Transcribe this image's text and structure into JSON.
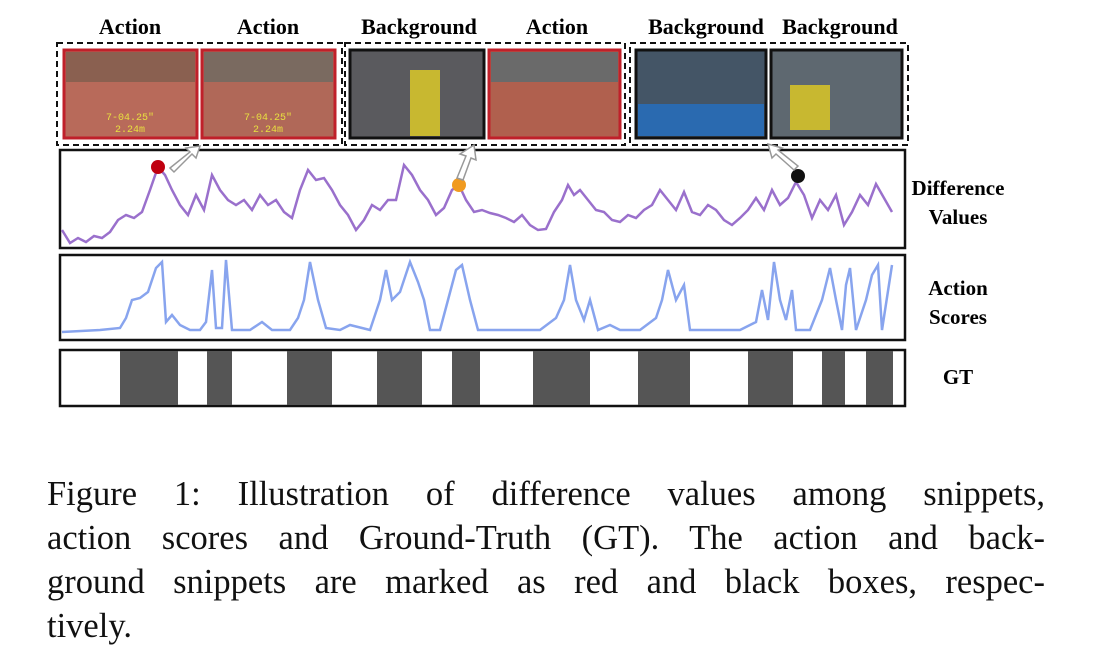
{
  "figure": {
    "frame_labels": [
      "Action",
      "Action",
      "Background",
      "Action",
      "Background",
      "Background"
    ],
    "frame_overlay": {
      "time": "7-04.25\"",
      "height": "2.24m"
    },
    "row_labels": {
      "difference": [
        "Difference",
        "Values"
      ],
      "scores": [
        "Action",
        "Scores"
      ],
      "gt": "GT"
    },
    "caption": [
      "Figure 1: Illustration of difference values among snippets,",
      "action scores and Ground-Truth (GT). The action and back-",
      "ground snippets are marked as red and black boxes, respec-",
      "tively."
    ]
  }
}
